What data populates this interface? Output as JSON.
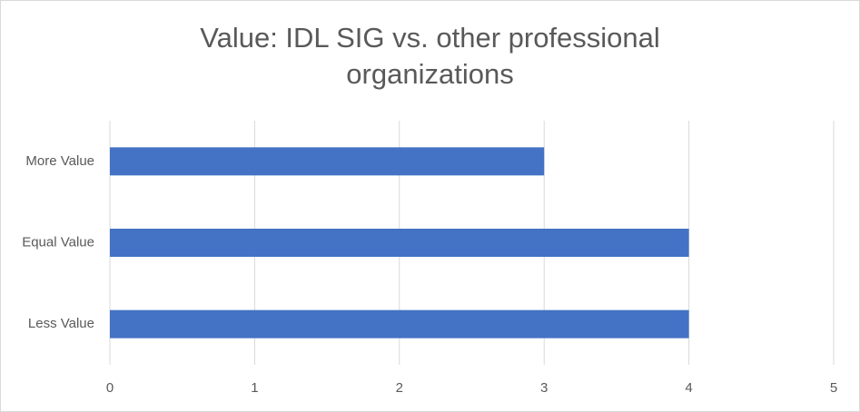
{
  "chart_data": {
    "type": "barh",
    "title": "Value: IDL SIG vs. other professional organizations",
    "categories": [
      "More Value",
      "Equal Value",
      "Less Value"
    ],
    "values": [
      3,
      4,
      4
    ],
    "color": "#4472c4",
    "xlim": [
      0,
      5
    ],
    "xticks": [
      0,
      1,
      2,
      3,
      4,
      5
    ],
    "grid": true
  }
}
